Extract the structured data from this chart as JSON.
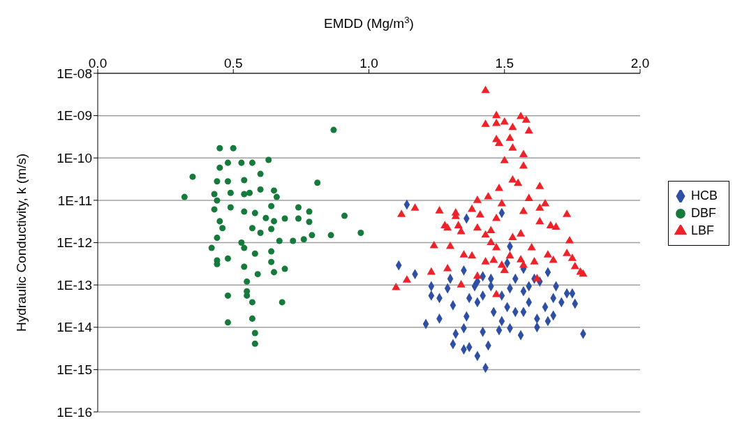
{
  "chart_data": {
    "type": "scatter",
    "xlabel": "EMDD (Mg/m$^{3}$)",
    "ylabel": "Hydraulic Conductivity, k (m/s)",
    "xlim": [
      0,
      2
    ],
    "xticks": [
      {
        "value": 0,
        "label": "0.0"
      },
      0.5,
      {
        "value": 1,
        "label": "1.0"
      },
      1.5,
      {
        "value": 2,
        "label": "2.0"
      }
    ],
    "ylim": [
      1e-16,
      1e-08
    ],
    "yticks": [
      {
        "value": 1e-16,
        "label": "1E-16"
      },
      {
        "value": 1e-15,
        "label": "1E-15"
      },
      {
        "value": 1e-14,
        "label": "1E-14"
      },
      {
        "value": 1e-13,
        "label": "1E-13"
      },
      {
        "value": 1e-12,
        "label": "1E-12"
      },
      {
        "value": 1e-11,
        "label": "1E-11"
      },
      {
        "value": 1e-10,
        "label": "1E-10"
      },
      {
        "value": 1e-09,
        "label": "1E-09"
      },
      {
        "value": 1e-08,
        "label": "1E-08"
      }
    ],
    "log": "y",
    "grid": "y",
    "legend": "right",
    "series": [
      {
        "name": "HCB",
        "color": "#2e4fa3",
        "marker": "diamond",
        "x": [
          1.11,
          1.17,
          1.21,
          1.26,
          1.23,
          1.23,
          1.29,
          1.31,
          1.32,
          1.31,
          1.35,
          1.37,
          1.4,
          1.43,
          1.44,
          1.42,
          1.36,
          1.35,
          1.4,
          1.39,
          1.45,
          1.51,
          1.46,
          1.49,
          1.52,
          1.56,
          1.54,
          1.59,
          1.57,
          1.54,
          1.62,
          1.62,
          1.66,
          1.68,
          1.65,
          1.68,
          1.69,
          1.73,
          1.75,
          1.76,
          1.71,
          1.79,
          1.52,
          1.49,
          1.36,
          1.66,
          1.63,
          1.42,
          1.49,
          1.45,
          1.3,
          1.35,
          1.37,
          1.26,
          1.61,
          1.57,
          1.51,
          1.52,
          1.59,
          1.48,
          1.14,
          1.42,
          1.57,
          1.4
        ],
        "values": [
          2.9e-13,
          1.8e-13,
          1.2e-14,
          1.6e-14,
          9.3e-14,
          5.6e-14,
          8.3e-14,
          3.3e-14,
          7e-15,
          4e-15,
          3e-15,
          3.4e-15,
          2.1e-15,
          1.1e-15,
          3.7e-15,
          7.8e-15,
          1.8e-14,
          9.5e-15,
          3.9e-14,
          9.3e-14,
          1.4e-13,
          3.3e-13,
          2.3e-14,
          1.4e-14,
          9.5e-15,
          6.5e-15,
          2.3e-14,
          3.9e-14,
          7.1e-14,
          1.4e-13,
          1.6e-14,
          1e-14,
          1.4e-14,
          1.9e-14,
          3e-14,
          4.9e-14,
          9.3e-14,
          6.3e-14,
          6.3e-14,
          3.6e-14,
          3.9e-14,
          7e-15,
          8.1e-13,
          5e-12,
          3.7e-12,
          2e-13,
          1.2e-13,
          5.6e-14,
          5.6e-14,
          9.3e-14,
          1.4e-13,
          2.2e-13,
          4.9e-14,
          4.9e-14,
          1.4e-13,
          2.3e-14,
          3e-14,
          8.3e-14,
          9.3e-14,
          8.5e-15,
          7.9e-12,
          1.6e-13,
          2.4e-13,
          1.2e-13
        ]
      },
      {
        "name": "DBF",
        "color": "#157a3c",
        "marker": "circle",
        "x": [
          0.87,
          0.45,
          0.5,
          0.63,
          0.35,
          0.32,
          0.81,
          0.45,
          0.48,
          0.53,
          0.57,
          0.6,
          0.44,
          0.48,
          0.54,
          0.43,
          0.44,
          0.49,
          0.54,
          0.56,
          0.6,
          0.65,
          0.66,
          0.43,
          0.49,
          0.54,
          0.58,
          0.64,
          0.62,
          0.74,
          0.78,
          0.74,
          0.78,
          0.69,
          0.65,
          0.91,
          0.97,
          0.86,
          0.45,
          0.46,
          0.44,
          0.57,
          0.6,
          0.64,
          0.79,
          0.76,
          0.72,
          0.53,
          0.54,
          0.58,
          0.42,
          0.44,
          0.48,
          0.44,
          0.67,
          0.64,
          0.64,
          0.65,
          0.69,
          0.54,
          0.59,
          0.55,
          0.55,
          0.55,
          0.57,
          0.48,
          0.68,
          0.48,
          0.57,
          0.58,
          0.58
        ],
        "values": [
          4.6e-10,
          1.7e-10,
          1.7e-10,
          9e-11,
          3.6e-11,
          1.2e-11,
          2.6e-11,
          5.9e-11,
          7.7e-11,
          7.7e-11,
          7.7e-11,
          4.2e-11,
          2.8e-11,
          2.8e-11,
          3e-11,
          1.4e-11,
          9.9e-12,
          1.5e-11,
          1.4e-11,
          1.5e-11,
          1.8e-11,
          1.7e-11,
          1.2e-11,
          6.1e-12,
          6.8e-12,
          5.4e-12,
          5e-12,
          7.3e-12,
          3.8e-12,
          6.8e-12,
          5.4e-12,
          3.7e-12,
          3.1e-12,
          3.7e-12,
          3.2e-12,
          4.3e-12,
          1.7e-12,
          1.5e-12,
          3.2e-12,
          2.2e-12,
          1.3e-12,
          2.2e-12,
          1.7e-12,
          2.1e-12,
          1.5e-12,
          1.2e-12,
          1.1e-12,
          1e-12,
          7.5e-13,
          5.5e-13,
          7.5e-13,
          3.8e-13,
          4.2e-13,
          3.1e-13,
          1.1e-12,
          6.2e-13,
          3.5e-13,
          2e-13,
          2.4e-13,
          2.7e-13,
          1.8e-13,
          1.2e-13,
          7.1e-14,
          5.6e-14,
          3.9e-14,
          5.6e-14,
          3.9e-14,
          1.3e-14,
          1.6e-14,
          7.3e-15,
          4.1e-15
        ]
      },
      {
        "name": "LBF",
        "color": "#ee2228",
        "marker": "triangle",
        "x": [
          1.43,
          1.47,
          1.43,
          1.5,
          1.56,
          1.58,
          1.53,
          1.47,
          1.59,
          1.47,
          1.48,
          1.52,
          1.53,
          1.57,
          1.5,
          1.57,
          1.53,
          1.55,
          1.48,
          1.63,
          1.17,
          1.12,
          1.26,
          1.4,
          1.44,
          1.49,
          1.59,
          1.65,
          1.32,
          1.38,
          1.41,
          1.57,
          1.63,
          1.47,
          1.28,
          1.33,
          1.63,
          1.67,
          1.69,
          1.32,
          1.29,
          1.34,
          1.4,
          1.43,
          1.45,
          1.45,
          1.53,
          1.56,
          1.73,
          1.74,
          1.24,
          1.3,
          1.35,
          1.38,
          1.43,
          1.47,
          1.46,
          1.52,
          1.56,
          1.57,
          1.6,
          1.61,
          1.66,
          1.68,
          1.73,
          1.75,
          1.76,
          1.78,
          1.23,
          1.29,
          1.1,
          1.14,
          1.34,
          1.4,
          1.47,
          1.49,
          1.62,
          1.5,
          1.79
        ],
        "values": [
          3.9e-09,
          1e-09,
          6.2e-10,
          7e-10,
          9.5e-10,
          7.8e-10,
          5.2e-10,
          6.5e-10,
          4.3e-10,
          2.7e-10,
          2.2e-10,
          2.9e-10,
          1.7e-10,
          1.2e-10,
          8.6e-11,
          6.4e-11,
          3e-11,
          2.5e-11,
          1.9e-11,
          2.1e-11,
          6.5e-12,
          4.6e-12,
          5.6e-12,
          9.9e-12,
          1.2e-11,
          8.2e-12,
          1.1e-11,
          8.2e-12,
          5e-12,
          6.1e-12,
          4.5e-12,
          5.4e-12,
          6.5e-12,
          3.7e-12,
          2.5e-12,
          2.5e-12,
          3.1e-12,
          2.5e-12,
          2.3e-12,
          4.1e-12,
          2.2e-12,
          1.8e-12,
          2.2e-12,
          1.5e-12,
          1.9e-12,
          1e-12,
          1.3e-12,
          1.6e-12,
          4.6e-12,
          1.1e-12,
          8.4e-13,
          8.1e-13,
          5.1e-13,
          4.8e-13,
          3.5e-13,
          7.5e-13,
          3.8e-13,
          4.8e-13,
          3.9e-13,
          2.9e-13,
          7.5e-13,
          3.5e-13,
          5.1e-13,
          3.8e-13,
          5.5e-13,
          4.2e-13,
          2.7e-13,
          2e-13,
          2e-13,
          2.4e-13,
          8.6e-14,
          1.3e-13,
          1e-13,
          1.6e-13,
          5.9e-14,
          2.9e-13,
          1.4e-13,
          2.2e-13,
          1.8e-13
        ]
      }
    ]
  }
}
